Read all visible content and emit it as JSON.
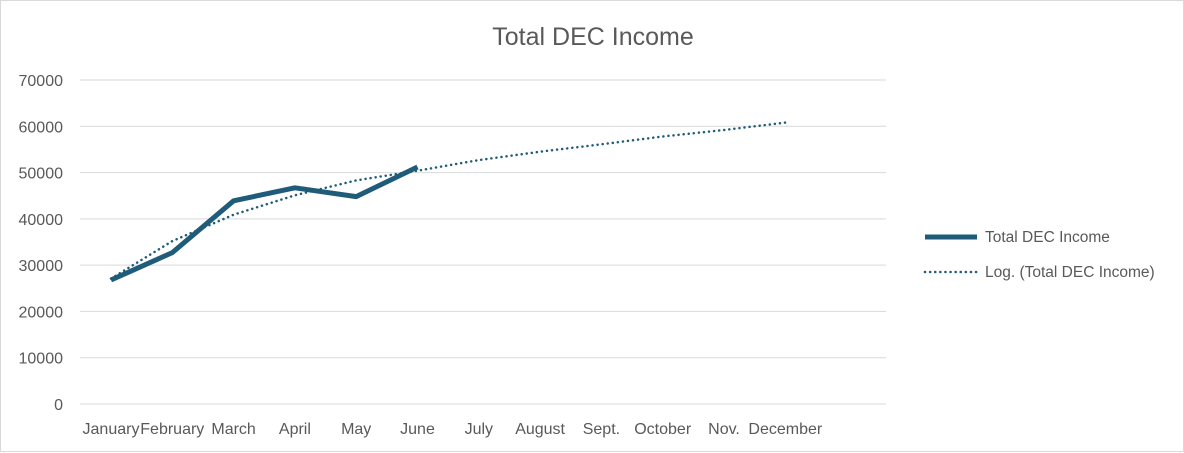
{
  "chart_data": {
    "type": "line",
    "title": "Total DEC Income",
    "xlabel": "",
    "ylabel": "",
    "categories": [
      "January",
      "February",
      "March",
      "April",
      "May",
      "June",
      "July",
      "August",
      "Sept.",
      "October",
      "Nov.",
      "December"
    ],
    "series": [
      {
        "name": "Total DEC Income",
        "values": [
          26800,
          32700,
          43900,
          46700,
          44800,
          51200,
          null,
          null,
          null,
          null,
          null,
          null
        ],
        "color": "#1f5c7a",
        "style": "solid"
      },
      {
        "name": "Log. (Total DEC Income)",
        "values": [
          27100,
          35200,
          40900,
          45100,
          48300,
          50400,
          52700,
          54500,
          56100,
          57800,
          59200,
          60800
        ],
        "color": "#1f5c7a",
        "style": "dotted"
      }
    ],
    "ylim": [
      0,
      70000
    ],
    "yticks": [
      0,
      10000,
      20000,
      30000,
      40000,
      50000,
      60000,
      70000
    ],
    "grid": true,
    "legend_position": "right"
  }
}
